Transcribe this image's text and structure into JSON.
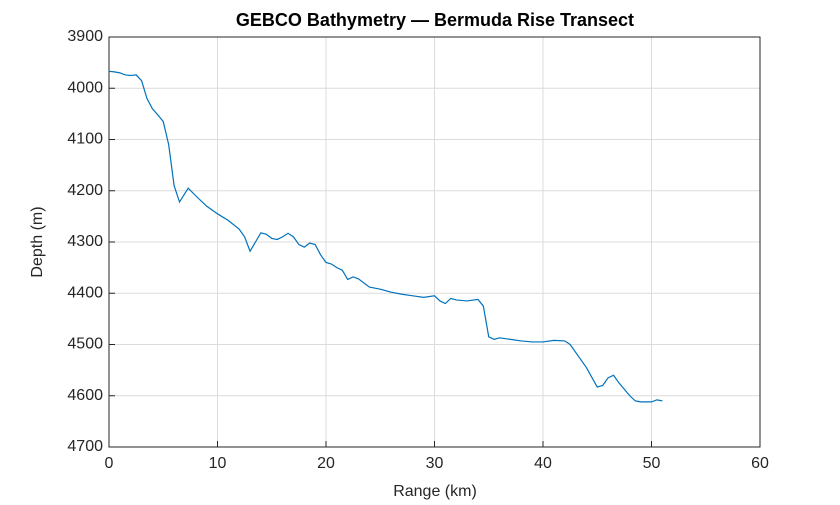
{
  "chart_data": {
    "type": "line",
    "title": "GEBCO Bathymetry — Bermuda Rise Transect",
    "xlabel": "Range (km)",
    "ylabel": "Depth (m)",
    "xlim": [
      0,
      60
    ],
    "xticks": [
      0,
      10,
      20,
      30,
      40,
      50,
      60
    ],
    "ylim": [
      3900,
      4700
    ],
    "yticks": [
      3900,
      4000,
      4100,
      4200,
      4300,
      4400,
      4500,
      4600,
      4700
    ],
    "y_direction": "reverse",
    "grid": true,
    "series": [
      {
        "name": "Depth",
        "color": "#0072bd",
        "x": [
          0,
          0.5,
          1,
          1.5,
          2,
          2.5,
          3,
          3.5,
          4,
          4.5,
          5,
          5.5,
          6,
          6.5,
          7,
          7.3,
          8,
          9,
          10,
          11,
          12,
          12.5,
          13,
          13.5,
          14,
          14.5,
          15,
          15.5,
          16,
          16.5,
          17,
          17.5,
          18,
          18.5,
          19,
          19.5,
          20,
          20.5,
          21,
          21.5,
          22,
          22.5,
          23,
          24,
          25,
          26,
          27,
          28,
          29,
          30,
          30.5,
          31,
          31.5,
          32,
          33,
          34,
          34.5,
          35,
          35.5,
          36,
          37,
          38,
          39,
          40,
          41,
          42,
          42.5,
          43,
          44,
          45,
          45.5,
          46,
          46.5,
          47,
          48,
          48.5,
          49,
          50,
          50.5,
          51
        ],
        "values": [
          3967,
          3968,
          3970,
          3974,
          3975,
          3974,
          3985,
          4020,
          4040,
          4052,
          4065,
          4110,
          4190,
          4222,
          4205,
          4195,
          4210,
          4230,
          4245,
          4258,
          4275,
          4290,
          4318,
          4300,
          4282,
          4285,
          4293,
          4295,
          4290,
          4283,
          4290,
          4305,
          4310,
          4302,
          4305,
          4325,
          4340,
          4343,
          4350,
          4355,
          4373,
          4368,
          4372,
          4388,
          4392,
          4398,
          4402,
          4405,
          4408,
          4405,
          4415,
          4420,
          4410,
          4413,
          4415,
          4412,
          4425,
          4485,
          4490,
          4487,
          4490,
          4493,
          4495,
          4495,
          4492,
          4493,
          4500,
          4515,
          4545,
          4583,
          4580,
          4565,
          4560,
          4575,
          4600,
          4610,
          4612,
          4612,
          4608,
          4610
        ]
      }
    ]
  }
}
